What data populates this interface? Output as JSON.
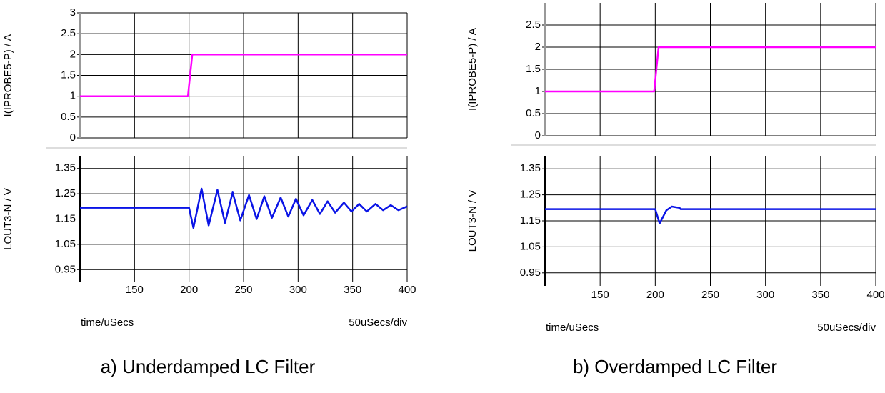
{
  "chart_data": [
    {
      "type": "line",
      "caption": "a) Underdamped LC Filter",
      "xlabel": "time/uSecs",
      "xscale_label": "50uSecs/div",
      "xlim": [
        100,
        400
      ],
      "xticks": [
        150,
        200,
        250,
        300,
        350,
        400
      ],
      "grid": true,
      "panels": [
        {
          "ylabel": "I(IPROBE5-P) / A",
          "ylim": [
            0,
            3
          ],
          "yticks": [
            0,
            0.5,
            1,
            1.5,
            2,
            2.5,
            3
          ],
          "series": [
            {
              "color": "#ff00ff",
              "x": [
                100,
                199,
                203,
                400
              ],
              "values": [
                1,
                1,
                2,
                2
              ]
            }
          ]
        },
        {
          "ylabel": "LOUT3-N / V",
          "ylim": [
            0.9,
            1.4
          ],
          "yticks": [
            0.95,
            1.05,
            1.15,
            1.25,
            1.35
          ],
          "series": [
            {
              "color": "#0a14e6",
              "x": [
                100,
                200,
                204,
                211.5,
                218,
                226,
                233,
                240,
                247,
                255,
                262,
                269,
                276,
                284,
                291,
                298,
                305,
                313,
                320,
                327,
                334,
                342,
                349,
                356,
                363,
                371,
                378,
                385,
                392,
                400
              ],
              "values": [
                1.195,
                1.195,
                1.115,
                1.27,
                1.125,
                1.265,
                1.135,
                1.255,
                1.145,
                1.245,
                1.15,
                1.24,
                1.155,
                1.235,
                1.16,
                1.23,
                1.165,
                1.225,
                1.17,
                1.22,
                1.175,
                1.215,
                1.18,
                1.21,
                1.18,
                1.21,
                1.185,
                1.205,
                1.185,
                1.2
              ]
            }
          ]
        }
      ]
    },
    {
      "type": "line",
      "caption": "b) Overdamped LC Filter",
      "xlabel": "time/uSecs",
      "xscale_label": "50uSecs/div",
      "xlim": [
        100,
        400
      ],
      "xticks": [
        150,
        200,
        250,
        300,
        350,
        400
      ],
      "grid": true,
      "panels": [
        {
          "ylabel": "I(IPROBE5-P) / A",
          "ylim": [
            0,
            3
          ],
          "yticks": [
            0,
            0.5,
            1,
            1.5,
            2,
            2.5
          ],
          "series": [
            {
              "color": "#ff00ff",
              "x": [
                100,
                199,
                203,
                400
              ],
              "values": [
                1,
                1,
                2,
                2
              ]
            }
          ]
        },
        {
          "ylabel": "LOUT3-N / V",
          "ylim": [
            0.9,
            1.4
          ],
          "yticks": [
            0.95,
            1.05,
            1.15,
            1.25,
            1.35
          ],
          "series": [
            {
              "color": "#0a14e6",
              "x": [
                100,
                200,
                204,
                210,
                215,
                222,
                223,
                400
              ],
              "values": [
                1.195,
                1.195,
                1.14,
                1.19,
                1.205,
                1.2,
                1.195,
                1.195
              ]
            }
          ]
        }
      ]
    }
  ]
}
